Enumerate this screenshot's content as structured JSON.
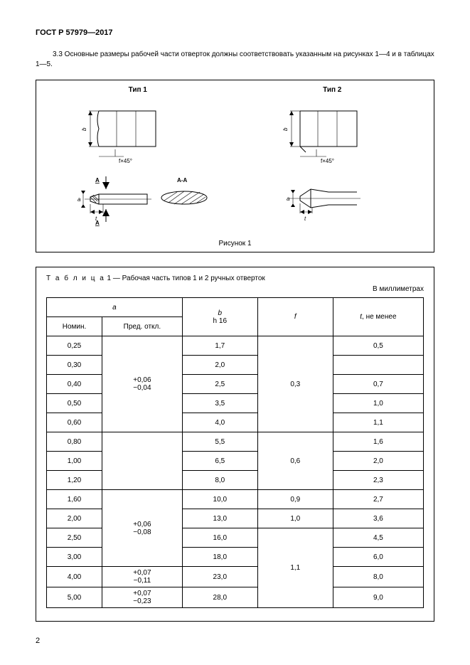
{
  "standard_id": "ГОСТ Р 57979—2017",
  "clause_text": "3.3 Основные размеры рабочей части отверток должны соответствовать указанным на рисунках 1—4 и в таблицах 1—5.",
  "figure": {
    "type1_label": "Тип 1",
    "type2_label": "Тип 2",
    "section_label": "A-A",
    "chamfer_label": "f×45°",
    "caption": "Рисунок 1"
  },
  "table": {
    "title_prefix": "Т а б л и ц а",
    "title_rest": " 1 — Рабочая часть типов 1 и 2 ручных отверток",
    "units": "В миллиметрах",
    "headers": {
      "a": "a",
      "a_nom": "Номин.",
      "a_tol": "Пред. откл.",
      "b": "b",
      "b_sub": "h 16",
      "f": "f",
      "t": "t, не менее"
    },
    "rows": [
      {
        "a_nom": "0,25",
        "b": "1,7",
        "t": "0,5"
      },
      {
        "a_nom": "0,30",
        "b": "2,0",
        "t": ""
      },
      {
        "a_nom": "0,40",
        "b": "2,5",
        "t": "0,7"
      },
      {
        "a_nom": "0,50",
        "b": "3,5",
        "t": "1,0"
      },
      {
        "a_nom": "0,60",
        "b": "4,0",
        "t": "1,1"
      },
      {
        "a_nom": "0,80",
        "b": "5,5",
        "t": "1,6"
      },
      {
        "a_nom": "1,00",
        "b": "6,5",
        "t": "2,0"
      },
      {
        "a_nom": "1,20",
        "b": "8,0",
        "t": "2,3"
      },
      {
        "a_nom": "1,60",
        "b": "10,0",
        "t": "2,7"
      },
      {
        "a_nom": "2,00",
        "b": "13,0",
        "t": "3,6"
      },
      {
        "a_nom": "2,50",
        "b": "16,0",
        "t": "4,5"
      },
      {
        "a_nom": "3,00",
        "b": "18,0",
        "t": "6,0"
      },
      {
        "a_nom": "4,00",
        "b": "23,0",
        "t": "8,0"
      },
      {
        "a_nom": "5,00",
        "b": "28,0",
        "t": "9,0"
      }
    ],
    "tol_groups": [
      {
        "upper": "+0,06",
        "lower": "−0,04",
        "span": 5
      },
      {
        "upper": "",
        "lower": "",
        "span": 3
      },
      {
        "upper": "+0,06",
        "lower": "−0,08",
        "span": 4
      },
      {
        "upper": "+0,07",
        "lower": "−0,11",
        "span": 1
      },
      {
        "upper": "+0,07",
        "lower": "−0,23",
        "span": 1
      }
    ],
    "f_groups": [
      {
        "val": "0,3",
        "span": 5
      },
      {
        "val": "0,6",
        "span": 3
      },
      {
        "val": "0,9",
        "span": 1
      },
      {
        "val": "1,0",
        "span": 1
      },
      {
        "val": "1,1",
        "span": 4
      }
    ]
  },
  "page_number": "2",
  "colors": {
    "page_bg": "#ffffff",
    "line": "#000000",
    "text": "#000000"
  }
}
